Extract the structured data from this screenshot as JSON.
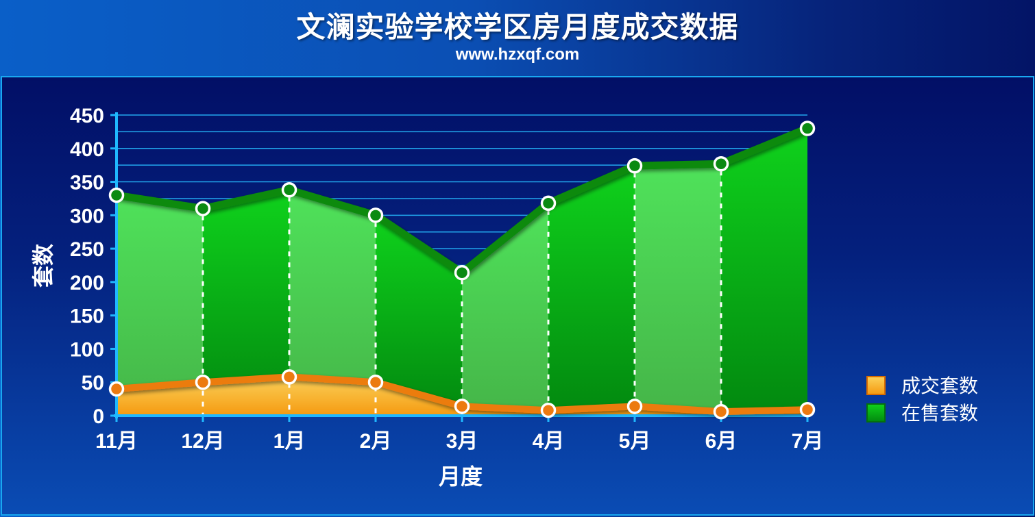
{
  "chart_data": {
    "type": "area",
    "title": "文澜实验学校学区房月度成交数据",
    "subtitle": "www.hzxqf.com",
    "xlabel": "月度",
    "ylabel": "套数",
    "categories": [
      "11月",
      "12月",
      "1月",
      "2月",
      "3月",
      "4月",
      "5月",
      "6月",
      "7月"
    ],
    "ylim": [
      0,
      450
    ],
    "yticks": [
      0,
      50,
      100,
      150,
      200,
      250,
      300,
      350,
      400,
      450
    ],
    "grid": true,
    "legend_position": "right",
    "series": [
      {
        "name": "成交套数",
        "values": [
          40,
          50,
          58,
          50,
          14,
          8,
          14,
          6,
          9
        ],
        "color": "#f28a10"
      },
      {
        "name": "在售套数",
        "values": [
          330,
          310,
          338,
          300,
          214,
          318,
          374,
          377,
          430
        ],
        "color": "#1fbf2a"
      }
    ]
  }
}
